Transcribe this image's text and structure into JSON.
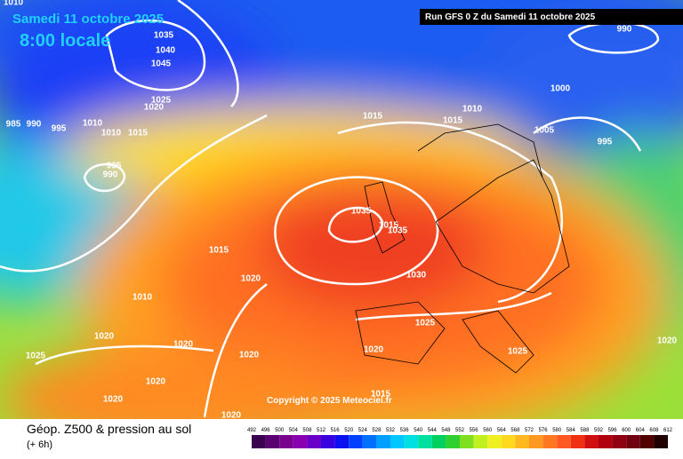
{
  "header": {
    "date": "Samedi 11 octobre 2025",
    "time": "8:00 locale",
    "run": "Run GFS 0 Z du Samedi 11 octobre 2025",
    "copyright": "Copyright © 2025 Meteociel.fr"
  },
  "footer": {
    "title": "Géop. Z500 & pression au sol",
    "lead": "(+ 6h)"
  },
  "colorbar": {
    "labels": [
      "492",
      "496",
      "500",
      "504",
      "508",
      "512",
      "516",
      "520",
      "524",
      "528",
      "532",
      "536",
      "540",
      "544",
      "548",
      "552",
      "556",
      "560",
      "564",
      "568",
      "572",
      "576",
      "580",
      "584",
      "588",
      "592",
      "596",
      "600",
      "604",
      "608",
      "612"
    ]
  },
  "isobar_labels": [
    "1010",
    "1035",
    "1040",
    "1045",
    "1025",
    "1020",
    "1010",
    "1010",
    "1015",
    "985",
    "990",
    "995",
    "995",
    "990",
    "1015",
    "1015",
    "1010",
    "1000",
    "1005",
    "995",
    "990",
    "1035",
    "1015",
    "1035",
    "1015",
    "1020",
    "1010",
    "1030",
    "1020",
    "1025",
    "1020",
    "1020",
    "1025",
    "1020",
    "1025",
    "1020",
    "1020",
    "1020",
    "1015",
    "1020"
  ]
}
